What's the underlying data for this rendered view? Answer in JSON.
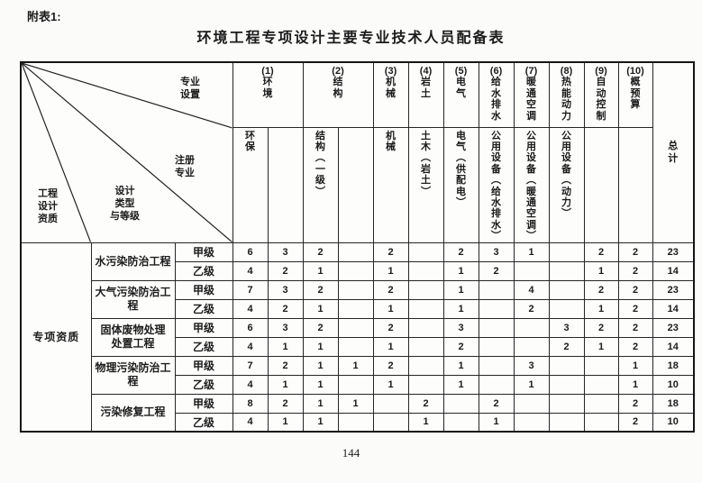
{
  "page": {
    "appendix_label": "附表1:",
    "title": "环境工程专项设计主要专业技术人员配备表",
    "page_number": "144"
  },
  "table": {
    "corner": {
      "specialty_setting": "专业\n设置",
      "registered_specialty": "注册\n专业",
      "design_type_grade": "设计\n类型\n与等级",
      "engineering_design_qualification": "工程\n设计\n资质"
    },
    "header": {
      "col1": "(1)\n环\n境",
      "col2": "(2)\n结\n构",
      "col3": "(3)\n机\n械",
      "col4": "(4)\n岩\n土",
      "col5": "(5)\n电\n气",
      "col6": "(6)\n给\n水\n排\n水",
      "col7": "(7)\n暖\n通\n空\n调",
      "col8": "(8)\n热\n能\n动\n力",
      "col9": "(9)\n自\n动\n控\n制",
      "col10": "(10)\n概\n预\n算",
      "total": "总\n计"
    },
    "subheader": {
      "env": "环\n保",
      "env2": "",
      "struct": "结\n构\n︵\n一\n级\n︶",
      "struct2": "",
      "mech": "机\n械",
      "geo": "土\n木\n︵\n岩\n土\n︶",
      "elec": "电\n气\n︵\n供\n配\n电\n︶",
      "water_supply": "公\n用\n设\n备\n︵\n给\n水\n排\n水\n︶",
      "hvac": "公\n用\n设\n备\n︵\n暖\n通\n空\n调\n︶",
      "power": "公\n用\n设\n备\n︵\n动\n力\n︶",
      "auto_control": "",
      "budget": ""
    },
    "body": {
      "qualification": "专项资质",
      "grade_a": "甲级",
      "grade_b": "乙级",
      "groups": [
        {
          "name": "水污染防治工程",
          "rows": [
            [
              "6",
              "3",
              "2",
              "",
              "2",
              "",
              "2",
              "3",
              "1",
              "",
              "2",
              "2",
              "23"
            ],
            [
              "4",
              "2",
              "1",
              "",
              "1",
              "",
              "1",
              "2",
              "",
              "",
              "1",
              "2",
              "14"
            ]
          ]
        },
        {
          "name": "大气污染防治工程",
          "rows": [
            [
              "7",
              "3",
              "2",
              "",
              "2",
              "",
              "1",
              "",
              "4",
              "",
              "2",
              "2",
              "23"
            ],
            [
              "4",
              "2",
              "1",
              "",
              "1",
              "",
              "1",
              "",
              "2",
              "",
              "1",
              "2",
              "14"
            ]
          ]
        },
        {
          "name": "固体废物处理\n处置工程",
          "rows": [
            [
              "6",
              "3",
              "2",
              "",
              "2",
              "",
              "3",
              "",
              "",
              "3",
              "2",
              "2",
              "23"
            ],
            [
              "4",
              "1",
              "1",
              "",
              "1",
              "",
              "2",
              "",
              "",
              "2",
              "1",
              "2",
              "14"
            ]
          ]
        },
        {
          "name": "物理污染防治工程",
          "rows": [
            [
              "7",
              "2",
              "1",
              "1",
              "2",
              "",
              "1",
              "",
              "3",
              "",
              "",
              "1",
              "18"
            ],
            [
              "4",
              "1",
              "1",
              "",
              "1",
              "",
              "1",
              "",
              "1",
              "",
              "",
              "1",
              "10"
            ]
          ]
        },
        {
          "name": "污染修复工程",
          "rows": [
            [
              "8",
              "2",
              "1",
              "1",
              "",
              "2",
              "",
              "2",
              "",
              "",
              "",
              "2",
              "18"
            ],
            [
              "4",
              "1",
              "1",
              "",
              "",
              "1",
              "",
              "1",
              "",
              "",
              "",
              "2",
              "10"
            ]
          ]
        }
      ]
    }
  }
}
